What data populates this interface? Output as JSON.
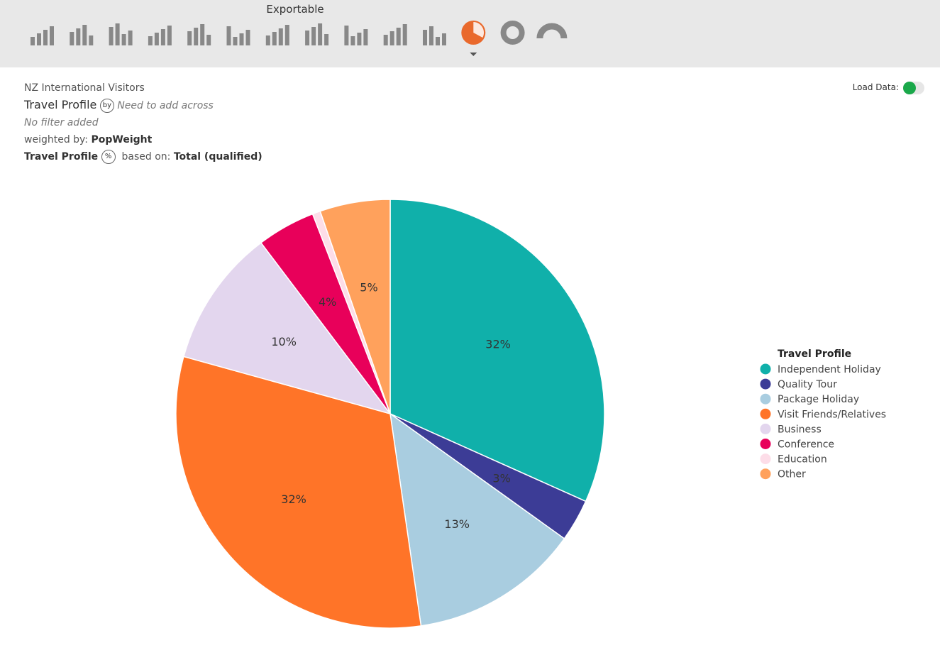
{
  "toolbar": {
    "label": "Exportable"
  },
  "header": {
    "dataset": "NZ International Visitors",
    "variable": "Travel Profile",
    "by_icon": "by",
    "across_hint": "Need to add across",
    "filter": "No filter added",
    "weighted_label": "weighted by:",
    "weight": "PopWeight",
    "base_variable": "Travel Profile",
    "pct_icon": "%",
    "based_label": "based on:",
    "base": "Total (qualified)"
  },
  "load_data": {
    "label": "Load Data:"
  },
  "chart_data": {
    "type": "pie",
    "legend_title": "Travel Profile",
    "legend": "right",
    "categories": [
      "Independent Holiday",
      "Quality Tour",
      "Package Holiday",
      "Visit Friends/Relatives",
      "Business",
      "Conference",
      "Education",
      "Other"
    ],
    "values": [
      31.7,
      3.2,
      12.8,
      31.6,
      10.4,
      4.4,
      0.6,
      5.3
    ],
    "value_labels": [
      "32%",
      "3%",
      "13%",
      "32%",
      "10%",
      "4%",
      null,
      "5%"
    ],
    "colors": [
      "#10b0aa",
      "#3c3c96",
      "#a9cde0",
      "#ff7428",
      "#e3d6ee",
      "#e8005a",
      "#fddde8",
      "#ffa15c"
    ]
  }
}
